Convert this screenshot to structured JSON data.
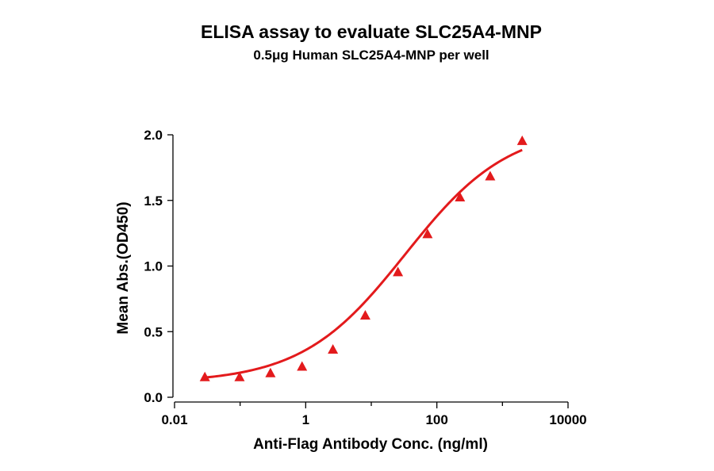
{
  "chart_data": {
    "type": "scatter",
    "title": "ELISA assay to evaluate SLC25A4-MNP",
    "subtitle": "0.5μg Human SLC25A4-MNP per well",
    "xlabel": "Anti-Flag Antibody Conc. (ng/ml)",
    "ylabel": "Mean Abs.(OD450)",
    "xscale": "log",
    "xlim": [
      0.01,
      10000
    ],
    "ylim": [
      0,
      2.0
    ],
    "xticks": [
      0.01,
      1,
      100,
      10000
    ],
    "xtick_labels": [
      "0.01",
      "1",
      "100",
      "10000"
    ],
    "yticks": [
      0,
      0.5,
      1.0,
      1.5,
      2.0
    ],
    "ytick_labels": [
      "0.0",
      "0.5",
      "1.0",
      "1.5",
      "2.0"
    ],
    "grid": false,
    "color": "#e31a1c",
    "series": [
      {
        "marker": "triangle",
        "x": [
          0.029,
          0.098,
          0.29,
          0.88,
          2.6,
          8.1,
          25.5,
          72,
          225,
          650,
          2000
        ],
        "y": [
          0.15,
          0.15,
          0.18,
          0.23,
          0.36,
          0.62,
          0.95,
          1.24,
          1.52,
          1.68,
          1.95
        ],
        "fit": {
          "model": "4PL",
          "bottom": 0.11,
          "top": 2.07,
          "ec50": 33,
          "hill": 0.55,
          "x_range": [
            0.029,
            2000
          ]
        }
      }
    ]
  }
}
